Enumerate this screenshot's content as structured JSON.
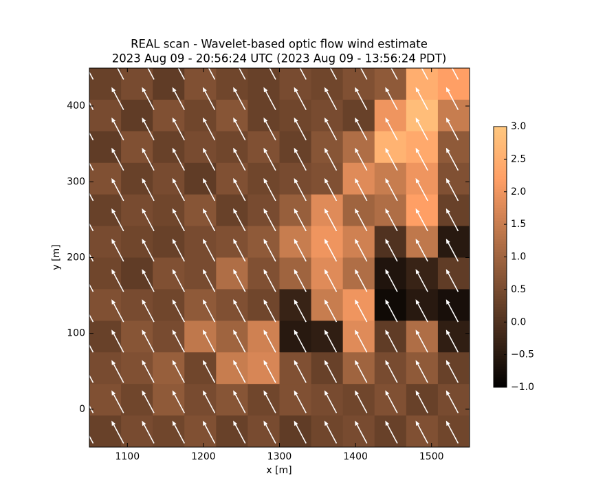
{
  "chart_data": {
    "type": "heatmap",
    "title": "REAL scan - Wavelet-based optic flow wind estimate",
    "subtitle": "2023 Aug 09 - 20:56:24 UTC (2023 Aug 09 - 13:56:24 PDT)",
    "xlabel": "x [m]",
    "ylabel": "y [m]",
    "xlim": [
      1050,
      1550
    ],
    "ylim": [
      -50,
      450
    ],
    "xticks": [
      1100,
      1200,
      1300,
      1400,
      1500
    ],
    "yticks": [
      0,
      100,
      200,
      300,
      400
    ],
    "colormap": "copper",
    "clim": [
      -1,
      3
    ],
    "cticks": [
      {
        "value": -1,
        "label": "−1.0"
      },
      {
        "value": -0.5,
        "label": "−0.5"
      },
      {
        "value": 0,
        "label": "0.0"
      },
      {
        "value": 0.5,
        "label": "0.5"
      },
      {
        "value": 1,
        "label": "1.0"
      },
      {
        "value": 1.5,
        "label": "1.5"
      },
      {
        "value": 2,
        "label": "2.0"
      },
      {
        "value": 2.5,
        "label": "2.5"
      },
      {
        "value": 3,
        "label": "3.0"
      }
    ],
    "z": [
      [
        0.3,
        0.5,
        0.2,
        0.6,
        0.4,
        0.3,
        0.5,
        0.4,
        0.6,
        0.8,
        2.5,
        2.2
      ],
      [
        0.5,
        0.2,
        0.6,
        0.4,
        0.7,
        0.3,
        0.4,
        0.5,
        0.3,
        2.0,
        2.8,
        1.5
      ],
      [
        0.2,
        0.6,
        0.3,
        0.5,
        0.4,
        0.6,
        0.3,
        0.7,
        1.2,
        2.6,
        2.4,
        0.8
      ],
      [
        0.6,
        0.3,
        0.5,
        0.2,
        0.6,
        0.4,
        0.5,
        0.6,
        1.8,
        1.5,
        2.0,
        0.6
      ],
      [
        0.3,
        0.5,
        0.4,
        0.7,
        0.3,
        0.5,
        0.9,
        1.8,
        1.0,
        1.2,
        2.2,
        0.3
      ],
      [
        0.5,
        0.4,
        0.3,
        0.5,
        0.6,
        0.8,
        1.5,
        2.0,
        1.6,
        0.0,
        1.4,
        -0.5
      ],
      [
        0.4,
        0.2,
        0.6,
        0.5,
        1.2,
        0.6,
        1.0,
        1.8,
        1.2,
        -0.6,
        -0.3,
        0.2
      ],
      [
        0.6,
        0.5,
        0.4,
        0.8,
        0.6,
        0.4,
        -0.3,
        1.5,
        2.0,
        -0.8,
        -0.5,
        -0.7
      ],
      [
        0.3,
        0.7,
        0.5,
        1.4,
        1.0,
        1.6,
        -0.5,
        -0.4,
        1.8,
        0.2,
        1.2,
        -0.4
      ],
      [
        0.5,
        0.6,
        0.9,
        0.4,
        1.5,
        1.7,
        0.6,
        0.3,
        1.0,
        0.5,
        0.8,
        0.3
      ],
      [
        0.6,
        0.4,
        0.8,
        0.5,
        0.7,
        0.4,
        0.6,
        0.5,
        0.4,
        0.6,
        0.3,
        0.5
      ],
      [
        0.3,
        0.5,
        0.4,
        0.6,
        0.3,
        0.5,
        0.2,
        0.4,
        0.5,
        0.3,
        0.6,
        0.4
      ]
    ],
    "quiver": {
      "color": "#ffffff",
      "x": [
        1055,
        1095,
        1135,
        1175,
        1215,
        1255,
        1295,
        1335,
        1375,
        1415,
        1455,
        1495,
        1535
      ],
      "y": [
        -45,
        -5,
        35,
        75,
        115,
        155,
        195,
        235,
        275,
        315,
        355,
        395,
        435
      ],
      "u": -1.6,
      "v": 3.0
    }
  }
}
